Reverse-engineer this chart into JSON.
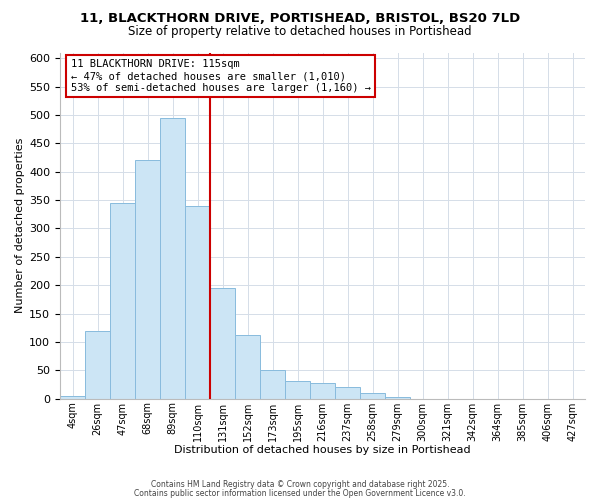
{
  "title_line1": "11, BLACKTHORN DRIVE, PORTISHEAD, BRISTOL, BS20 7LD",
  "title_line2": "Size of property relative to detached houses in Portishead",
  "xlabel": "Distribution of detached houses by size in Portishead",
  "ylabel": "Number of detached properties",
  "bar_labels": [
    "4sqm",
    "26sqm",
    "47sqm",
    "68sqm",
    "89sqm",
    "110sqm",
    "131sqm",
    "152sqm",
    "173sqm",
    "195sqm",
    "216sqm",
    "237sqm",
    "258sqm",
    "279sqm",
    "300sqm",
    "321sqm",
    "342sqm",
    "364sqm",
    "385sqm",
    "406sqm",
    "427sqm"
  ],
  "bar_heights": [
    5,
    120,
    345,
    420,
    495,
    340,
    195,
    113,
    50,
    32,
    27,
    20,
    10,
    3,
    0,
    0,
    0,
    0,
    0,
    0,
    0
  ],
  "bar_color": "#cce5f5",
  "bar_edge_color": "#88bbdd",
  "grid_color": "#d5dde8",
  "vline_color": "#cc0000",
  "annotation_title": "11 BLACKTHORN DRIVE: 115sqm",
  "annotation_line2": "← 47% of detached houses are smaller (1,010)",
  "annotation_line3": "53% of semi-detached houses are larger (1,160) →",
  "annotation_box_color": "white",
  "annotation_border_color": "#cc0000",
  "ylim": [
    0,
    610
  ],
  "yticks": [
    0,
    50,
    100,
    150,
    200,
    250,
    300,
    350,
    400,
    450,
    500,
    550,
    600
  ],
  "footer_line1": "Contains HM Land Registry data © Crown copyright and database right 2025.",
  "footer_line2": "Contains public sector information licensed under the Open Government Licence v3.0."
}
